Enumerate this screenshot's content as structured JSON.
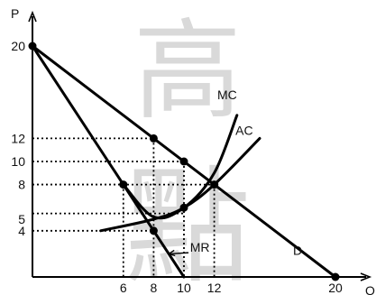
{
  "watermark": [
    "高",
    "點"
  ],
  "chart_data": {
    "type": "line",
    "title": "",
    "xlabel": "Q",
    "ylabel": "P",
    "xlim": [
      0,
      20
    ],
    "ylim": [
      0,
      22
    ],
    "x_ticks": [
      6,
      8,
      10,
      12,
      20
    ],
    "y_ticks": [
      4,
      5,
      8,
      10,
      12,
      20
    ],
    "grid": false,
    "series": [
      {
        "name": "D",
        "shape": "straight",
        "points": [
          [
            0,
            20
          ],
          [
            20,
            0
          ]
        ]
      },
      {
        "name": "MR",
        "shape": "straight",
        "points": [
          [
            0,
            20
          ],
          [
            10,
            0
          ]
        ]
      },
      {
        "name": "MC",
        "shape": "curve",
        "points": [
          [
            6,
            8
          ],
          [
            8,
            5.2
          ],
          [
            10,
            6
          ],
          [
            12,
            9
          ],
          [
            13.5,
            14
          ]
        ]
      },
      {
        "name": "AC",
        "shape": "curve",
        "points": [
          [
            4.5,
            4
          ],
          [
            8,
            5
          ],
          [
            10,
            6
          ],
          [
            12,
            8
          ],
          [
            15,
            12
          ]
        ]
      }
    ],
    "markers": [
      [
        0,
        20
      ],
      [
        8,
        12
      ],
      [
        10,
        10
      ],
      [
        12,
        8
      ],
      [
        6,
        8
      ],
      [
        10,
        6
      ],
      [
        8,
        4
      ],
      [
        20,
        0
      ]
    ],
    "reference_lines": [
      {
        "x": 8,
        "y": 12,
        "vertical_to": 0
      },
      {
        "x": 10,
        "y": 10,
        "vertical_to": 0
      },
      {
        "x": 12,
        "y": 8,
        "vertical_to": 0
      },
      {
        "x": 6,
        "y": 8,
        "vertical_to": 0
      },
      {
        "x": 10,
        "y": 5.5
      },
      {
        "x": 8,
        "y": 4
      }
    ],
    "annotations": [
      {
        "text": "MR",
        "arrow_to": [
          9,
          2
        ]
      }
    ]
  }
}
